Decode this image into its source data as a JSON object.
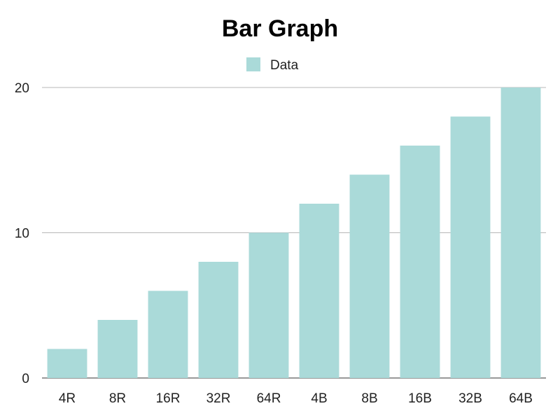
{
  "colors": {
    "bar": "#aadad9",
    "grid": "#b7b7b7",
    "axis": "#333333",
    "text": "#222222"
  },
  "chart_data": {
    "type": "bar",
    "title": "Bar Graph",
    "xlabel": "",
    "ylabel": "",
    "categories": [
      "4R",
      "8R",
      "16R",
      "32R",
      "64R",
      "4B",
      "8B",
      "16B",
      "32B",
      "64B"
    ],
    "series": [
      {
        "name": "Data",
        "values": [
          2,
          4,
          6,
          8,
          10,
          12,
          14,
          16,
          18,
          20
        ]
      }
    ],
    "ylim": [
      0,
      20
    ],
    "yticks": [
      0,
      10,
      20
    ],
    "grid": true,
    "legend": "top-center"
  }
}
